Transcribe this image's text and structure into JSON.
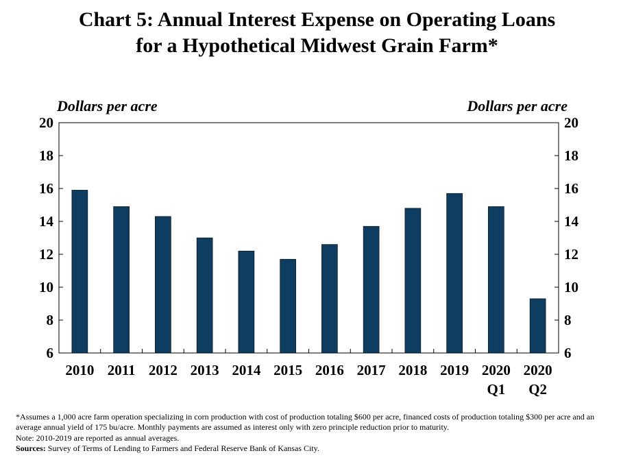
{
  "title_line1": "Chart 5: Annual Interest Expense on Operating Loans",
  "title_line2": "for a Hypothetical Midwest Grain Farm*",
  "left_unit": "Dollars per acre",
  "right_unit": "Dollars per acre",
  "footnote": "*Assumes a 1,000 acre farm operation specializing in corn production with cost of production totaling $600 per acre, financed costs of production totaling $300 per acre and an average annual yield of 175 bu/acre. Monthly payments are assumed as interest only with zero principle reduction prior to maturity.",
  "note": "Note: 2010-2019 are reported as annual averages.",
  "sources_label": "Sources:",
  "sources_text": " Survey of Terms of Lending to Farmers and Federal Reserve Bank of Kansas City.",
  "colors": {
    "bar": "#0e3d62",
    "axis": "#000000"
  },
  "chart_data": {
    "type": "bar",
    "title": "Chart 5: Annual Interest Expense on Operating Loans for a Hypothetical Midwest Grain Farm*",
    "ylabel": "Dollars per acre",
    "ylabel_right": "Dollars per acre",
    "categories": [
      [
        "2010"
      ],
      [
        "2011"
      ],
      [
        "2012"
      ],
      [
        "2013"
      ],
      [
        "2014"
      ],
      [
        "2015"
      ],
      [
        "2016"
      ],
      [
        "2017"
      ],
      [
        "2018"
      ],
      [
        "2019"
      ],
      [
        "2020",
        "Q1"
      ],
      [
        "2020",
        "Q2"
      ]
    ],
    "values": [
      15.9,
      14.9,
      14.3,
      13.0,
      12.2,
      11.7,
      12.6,
      13.7,
      14.8,
      15.7,
      14.9,
      9.3
    ],
    "ylim": [
      6,
      20
    ],
    "yticks": [
      6,
      8,
      10,
      12,
      14,
      16,
      18,
      20
    ],
    "grid": false,
    "legend": "none"
  }
}
